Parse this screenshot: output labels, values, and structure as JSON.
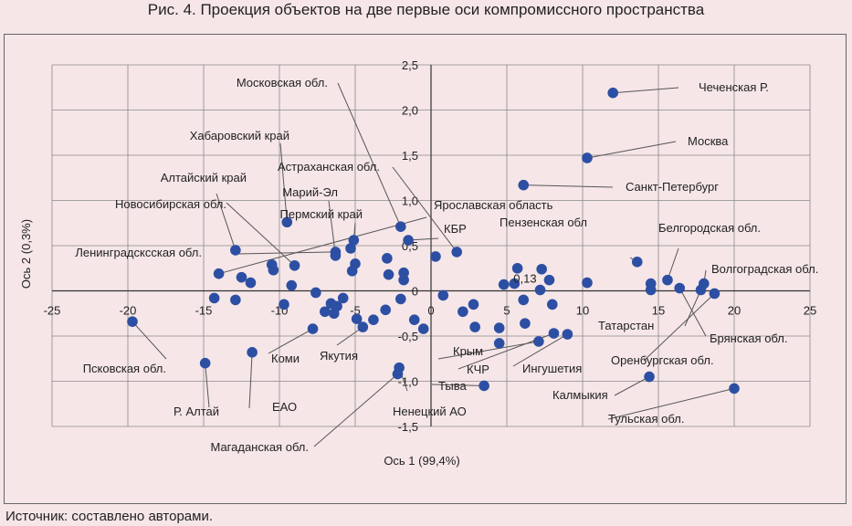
{
  "figure": {
    "title": "Рис. 4. Проекция объектов на две первые оси компромиссного пространства",
    "source": "Источник: составлено авторами."
  },
  "chart_data": {
    "type": "scatter",
    "xlabel": "Ось 1 (99,4%)",
    "ylabel": "Ось 2 (0,3%)",
    "xlim": [
      -25,
      25
    ],
    "ylim": [
      -1.5,
      2.5
    ],
    "xticks": [
      "-25",
      "-20",
      "-15",
      "-10",
      "-5",
      "0",
      "5",
      "10",
      "15",
      "20",
      "25"
    ],
    "yticks": [
      "2,5",
      "2,0",
      "1,5",
      "1,0",
      "0,5",
      "0",
      "-0,5",
      "-1,0",
      "-1,5"
    ],
    "grid": true,
    "point_color": "#2d4fa3",
    "leader_color": "#555555",
    "annotations": [
      {
        "text": "0,13",
        "x": 5.8,
        "y": 0.13
      }
    ],
    "labeled_points": [
      {
        "name": "Чеченская Р.",
        "x": 12.0,
        "y": 2.19
      },
      {
        "name": "Москва",
        "x": 10.3,
        "y": 1.47
      },
      {
        "name": "Санкт-Петербург",
        "x": 6.1,
        "y": 1.17
      },
      {
        "name": "Пензенская обл",
        "x": 13.6,
        "y": 0.32
      },
      {
        "name": "Белгородская обл.",
        "x": 15.6,
        "y": 0.12
      },
      {
        "name": "Волгоградская обл.",
        "x": 18.0,
        "y": 0.08
      },
      {
        "name": "Татарстан",
        "x": 17.8,
        "y": 0.01
      },
      {
        "name": "Брянская обл.",
        "x": 16.4,
        "y": 0.03
      },
      {
        "name": "Оренбургская обл.",
        "x": 18.7,
        "y": -0.03
      },
      {
        "name": "Калмыкия",
        "x": 14.4,
        "y": -0.95
      },
      {
        "name": "Тульская обл.",
        "x": 20.0,
        "y": -1.08
      },
      {
        "name": "Московская обл.",
        "x": -2.0,
        "y": 0.71
      },
      {
        "name": "Хабаровский край",
        "x": -9.5,
        "y": 0.76
      },
      {
        "name": "Астраханская обл.",
        "x": 1.7,
        "y": 0.43
      },
      {
        "name": "Марий-Эл",
        "x": -6.3,
        "y": 0.39
      },
      {
        "name": "Пермский край",
        "x": -5.1,
        "y": 0.56
      },
      {
        "name": "Ярославская область",
        "x": -14.0,
        "y": 0.19
      },
      {
        "name": "КБР",
        "x": -1.5,
        "y": 0.56
      },
      {
        "name": "Алтайский край",
        "x": -12.9,
        "y": 0.45
      },
      {
        "name": "Новосибирская обл.",
        "x": -9.0,
        "y": 0.28
      },
      {
        "name": "Ленинградсксская обл.",
        "x": -6.3,
        "y": 0.43
      },
      {
        "name": "Псковская обл.",
        "x": -19.7,
        "y": -0.34
      },
      {
        "name": "Р. Алтай",
        "x": -14.9,
        "y": -0.8
      },
      {
        "name": "ЕАО",
        "x": -11.8,
        "y": -0.68
      },
      {
        "name": "Коми",
        "x": -7.8,
        "y": -0.42
      },
      {
        "name": "Якутия",
        "x": -4.5,
        "y": -0.4
      },
      {
        "name": "Магаданская обл.",
        "x": -2.2,
        "y": -0.92
      },
      {
        "name": "Ненецкий АО",
        "x": -2.1,
        "y": -0.85
      },
      {
        "name": "Тыва",
        "x": 3.5,
        "y": -1.05
      },
      {
        "name": "Крым",
        "x": 7.1,
        "y": -0.56
      },
      {
        "name": "КЧР",
        "x": 8.1,
        "y": -0.47
      },
      {
        "name": "Ингушетия",
        "x": 9.0,
        "y": -0.48
      }
    ],
    "points": [
      {
        "x": -14.3,
        "y": -0.08
      },
      {
        "x": -12.9,
        "y": -0.1
      },
      {
        "x": -12.5,
        "y": 0.15
      },
      {
        "x": -11.9,
        "y": 0.09
      },
      {
        "x": -10.5,
        "y": 0.29
      },
      {
        "x": -10.4,
        "y": 0.23
      },
      {
        "x": -9.7,
        "y": -0.15
      },
      {
        "x": -9.2,
        "y": 0.06
      },
      {
        "x": -7.6,
        "y": -0.02
      },
      {
        "x": -7.0,
        "y": -0.23
      },
      {
        "x": -6.6,
        "y": -0.14
      },
      {
        "x": -6.4,
        "y": -0.25
      },
      {
        "x": -6.2,
        "y": -0.17
      },
      {
        "x": -5.8,
        "y": -0.08
      },
      {
        "x": -5.3,
        "y": 0.47
      },
      {
        "x": -5.2,
        "y": 0.22
      },
      {
        "x": -5.0,
        "y": 0.3
      },
      {
        "x": -4.9,
        "y": -0.31
      },
      {
        "x": -3.8,
        "y": -0.32
      },
      {
        "x": -2.8,
        "y": 0.18
      },
      {
        "x": -2.9,
        "y": 0.36
      },
      {
        "x": -3.0,
        "y": -0.21
      },
      {
        "x": -2.0,
        "y": -0.09
      },
      {
        "x": -1.8,
        "y": 0.12
      },
      {
        "x": -1.8,
        "y": 0.2
      },
      {
        "x": -1.1,
        "y": -0.32
      },
      {
        "x": -0.5,
        "y": -0.42
      },
      {
        "x": 0.3,
        "y": 0.38
      },
      {
        "x": 0.8,
        "y": -0.05
      },
      {
        "x": 2.1,
        "y": -0.23
      },
      {
        "x": 2.8,
        "y": -0.15
      },
      {
        "x": 2.9,
        "y": -0.4
      },
      {
        "x": 4.5,
        "y": -0.41
      },
      {
        "x": 4.5,
        "y": -0.58
      },
      {
        "x": 4.8,
        "y": 0.07
      },
      {
        "x": 5.5,
        "y": 0.08
      },
      {
        "x": 5.7,
        "y": 0.25
      },
      {
        "x": 6.1,
        "y": -0.1
      },
      {
        "x": 6.2,
        "y": -0.36
      },
      {
        "x": 7.3,
        "y": 0.24
      },
      {
        "x": 7.2,
        "y": 0.01
      },
      {
        "x": 7.8,
        "y": 0.12
      },
      {
        "x": 8.0,
        "y": -0.15
      },
      {
        "x": 10.3,
        "y": 0.09
      },
      {
        "x": 14.5,
        "y": 0.08
      },
      {
        "x": 14.5,
        "y": 0.01
      }
    ]
  }
}
